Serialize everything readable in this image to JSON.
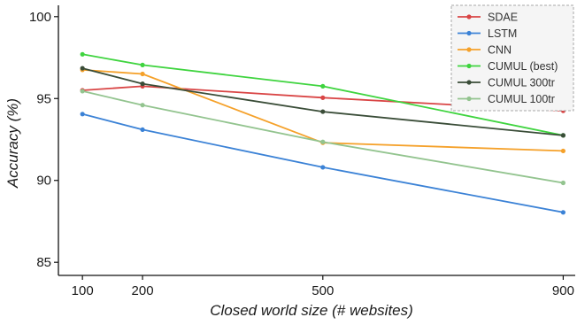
{
  "chart_data": {
    "type": "line",
    "title": "",
    "xlabel": "Closed world size (# websites)",
    "ylabel": "Accuracy (%)",
    "x": [
      100,
      200,
      500,
      900
    ],
    "x_ticks": [
      "100",
      "200",
      "500",
      "900"
    ],
    "y_ticks": [
      "85",
      "90",
      "95",
      "100"
    ],
    "xlim": [
      60,
      920
    ],
    "ylim": [
      84.2,
      100.8
    ],
    "grid": false,
    "legend_placement": "top-right",
    "series": [
      {
        "name": "SDAE",
        "color": "#d94545",
        "values": [
          95.5,
          95.75,
          95.05,
          94.25
        ]
      },
      {
        "name": "LSTM",
        "color": "#3b82d6",
        "values": [
          94.05,
          93.1,
          90.8,
          88.05
        ]
      },
      {
        "name": "CNN",
        "color": "#f5a12a",
        "values": [
          96.75,
          96.5,
          92.3,
          91.8
        ]
      },
      {
        "name": "CUMUL (best)",
        "color": "#3fd43f",
        "values": [
          97.7,
          97.05,
          95.75,
          92.75
        ]
      },
      {
        "name": "CUMUL 300tr",
        "color": "#3a4d38",
        "values": [
          96.85,
          95.9,
          94.2,
          92.75
        ]
      },
      {
        "name": "CUMUL 100tr",
        "color": "#93c48f",
        "values": [
          95.45,
          94.6,
          92.35,
          89.85
        ]
      }
    ]
  }
}
